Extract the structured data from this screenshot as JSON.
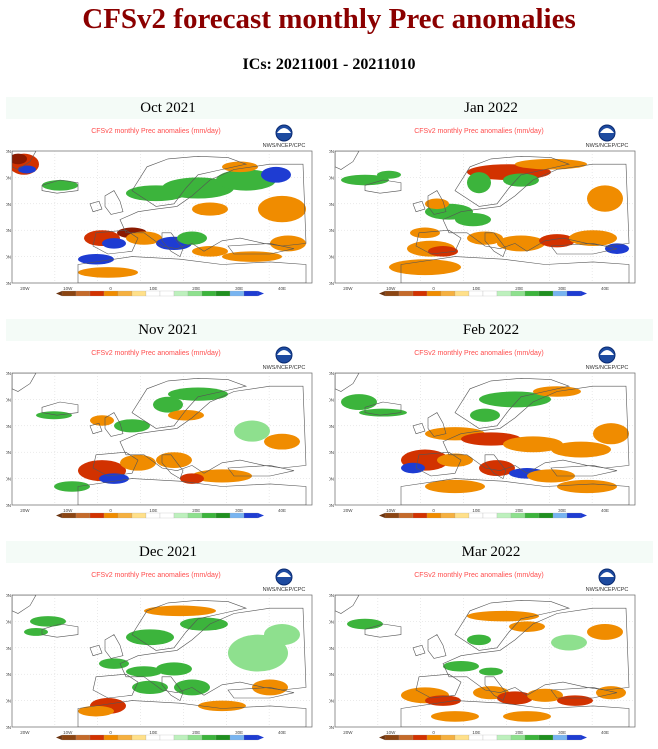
{
  "page": {
    "title": "CFSv2 forecast monthly Prec anomalies",
    "subtitle": "ICs: 20211001 - 20211010"
  },
  "colors": {
    "title": "#8b0000",
    "wet": "#3cb43c",
    "wet_light": "#8ee08e",
    "dry": "#f08c00",
    "dry_strong": "#d23200",
    "very_dry": "#8b1a00",
    "very_wet": "#1e3cd2",
    "map_header": "#ff4d4d"
  },
  "chart_data": [
    {
      "type": "heatmap",
      "title": "Oct 2021",
      "map_header": "CFSv2 monthly Prec anomalies (mm/day)",
      "map_month_tag": "Oct 2021",
      "agency": "NWS/NCEP/CPC",
      "pattern": "oct"
    },
    {
      "type": "heatmap",
      "title": "Jan 2022",
      "map_header": "CFSv2 monthly Prec anomalies (mm/day)",
      "map_month_tag": "Jan 2022",
      "agency": "NWS/NCEP/CPC",
      "pattern": "jan"
    },
    {
      "type": "heatmap",
      "title": "Nov 2021",
      "map_header": "CFSv2 monthly Prec anomalies (mm/day)",
      "map_month_tag": "Nov 2021",
      "agency": "NWS/NCEP/CPC",
      "pattern": "nov"
    },
    {
      "type": "heatmap",
      "title": "Feb 2022",
      "map_header": "CFSv2 monthly Prec anomalies (mm/day)",
      "map_month_tag": "Feb 2022",
      "agency": "NWS/NCEP/CPC",
      "pattern": "feb"
    },
    {
      "type": "heatmap",
      "title": "Dec 2021",
      "map_header": "CFSv2 monthly Prec anomalies (mm/day)",
      "map_month_tag": "Dec 2021",
      "agency": "NWS/NCEP/CPC",
      "pattern": "dec"
    },
    {
      "type": "heatmap",
      "title": "Mar 2022",
      "map_header": "CFSv2 monthly Prec anomalies (mm/day)",
      "map_month_tag": "Mar 2022",
      "agency": "NWS/NCEP/CPC",
      "pattern": "mar"
    }
  ],
  "lat_labels": [
    "80N",
    "70N",
    "60N",
    "50N",
    "40N",
    "30N"
  ],
  "lon_labels": [
    "20W",
    "10W",
    "0",
    "10E",
    "20E",
    "30E",
    "40E"
  ]
}
